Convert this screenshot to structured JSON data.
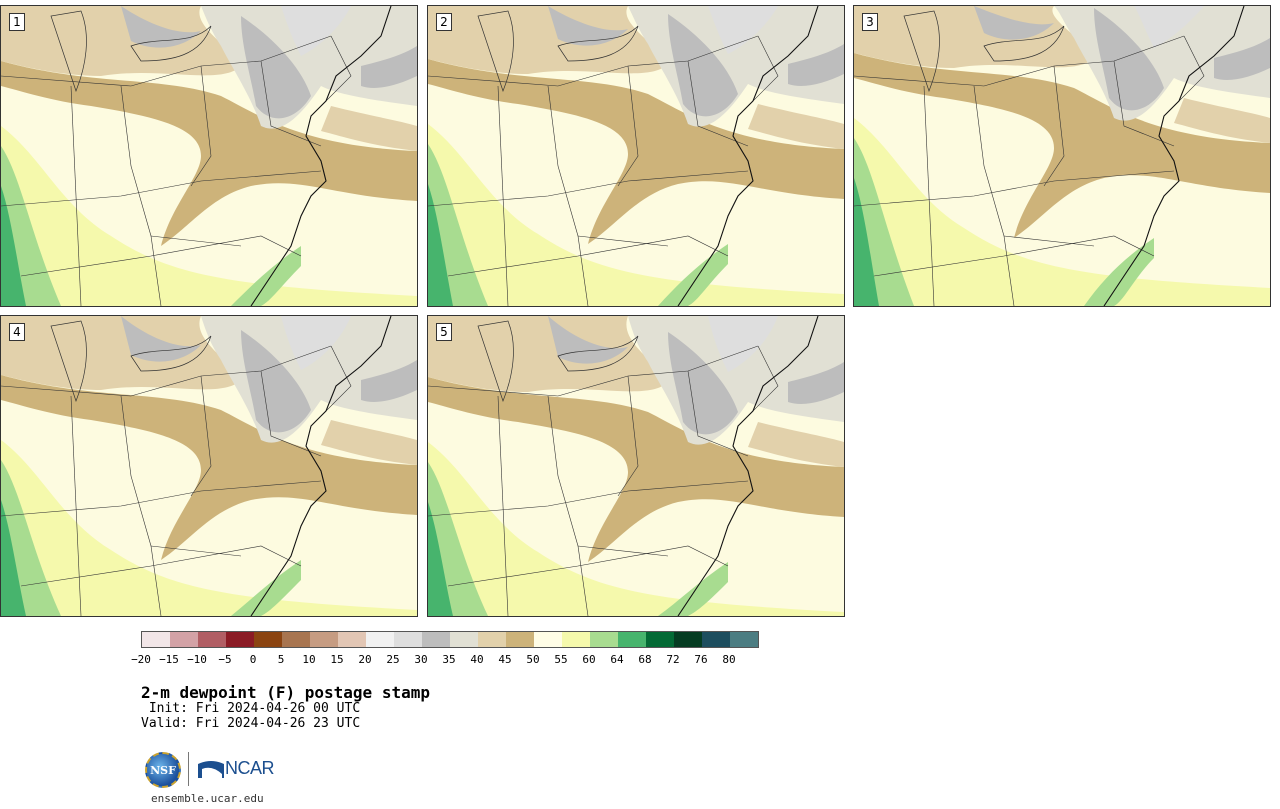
{
  "panels": [
    {
      "label": "1"
    },
    {
      "label": "2"
    },
    {
      "label": "3"
    },
    {
      "label": "4"
    },
    {
      "label": "5"
    }
  ],
  "legend": {
    "colors": [
      "#f2e6e8",
      "#d3a2a6",
      "#b15e64",
      "#8b1b25",
      "#8b4411",
      "#a87550",
      "#c69c82",
      "#e2c6b4",
      "#f1f1f1",
      "#dedede",
      "#bdbdbd",
      "#e1e0d4",
      "#e2d1ab",
      "#cdb37a",
      "#fffde6",
      "#f5f9ac",
      "#a8dc90",
      "#47b46d",
      "#036a35",
      "#053c22",
      "#1d4e5f",
      "#4c7d82"
    ],
    "ticks": [
      "−20",
      "−15",
      "−10",
      "−5",
      "0",
      "5",
      "10",
      "15",
      "20",
      "25",
      "30",
      "35",
      "40",
      "45",
      "50",
      "55",
      "60",
      "64",
      "68",
      "72",
      "76",
      "80"
    ]
  },
  "title": "2-m dewpoint (F) postage stamp",
  "init": " Init: Fri 2024-04-26 00 UTC",
  "valid": "Valid: Fri 2024-04-26 23 UTC",
  "logo": {
    "nsf": "NSF",
    "ncar": "NCAR"
  },
  "site": "ensemble.ucar.edu"
}
